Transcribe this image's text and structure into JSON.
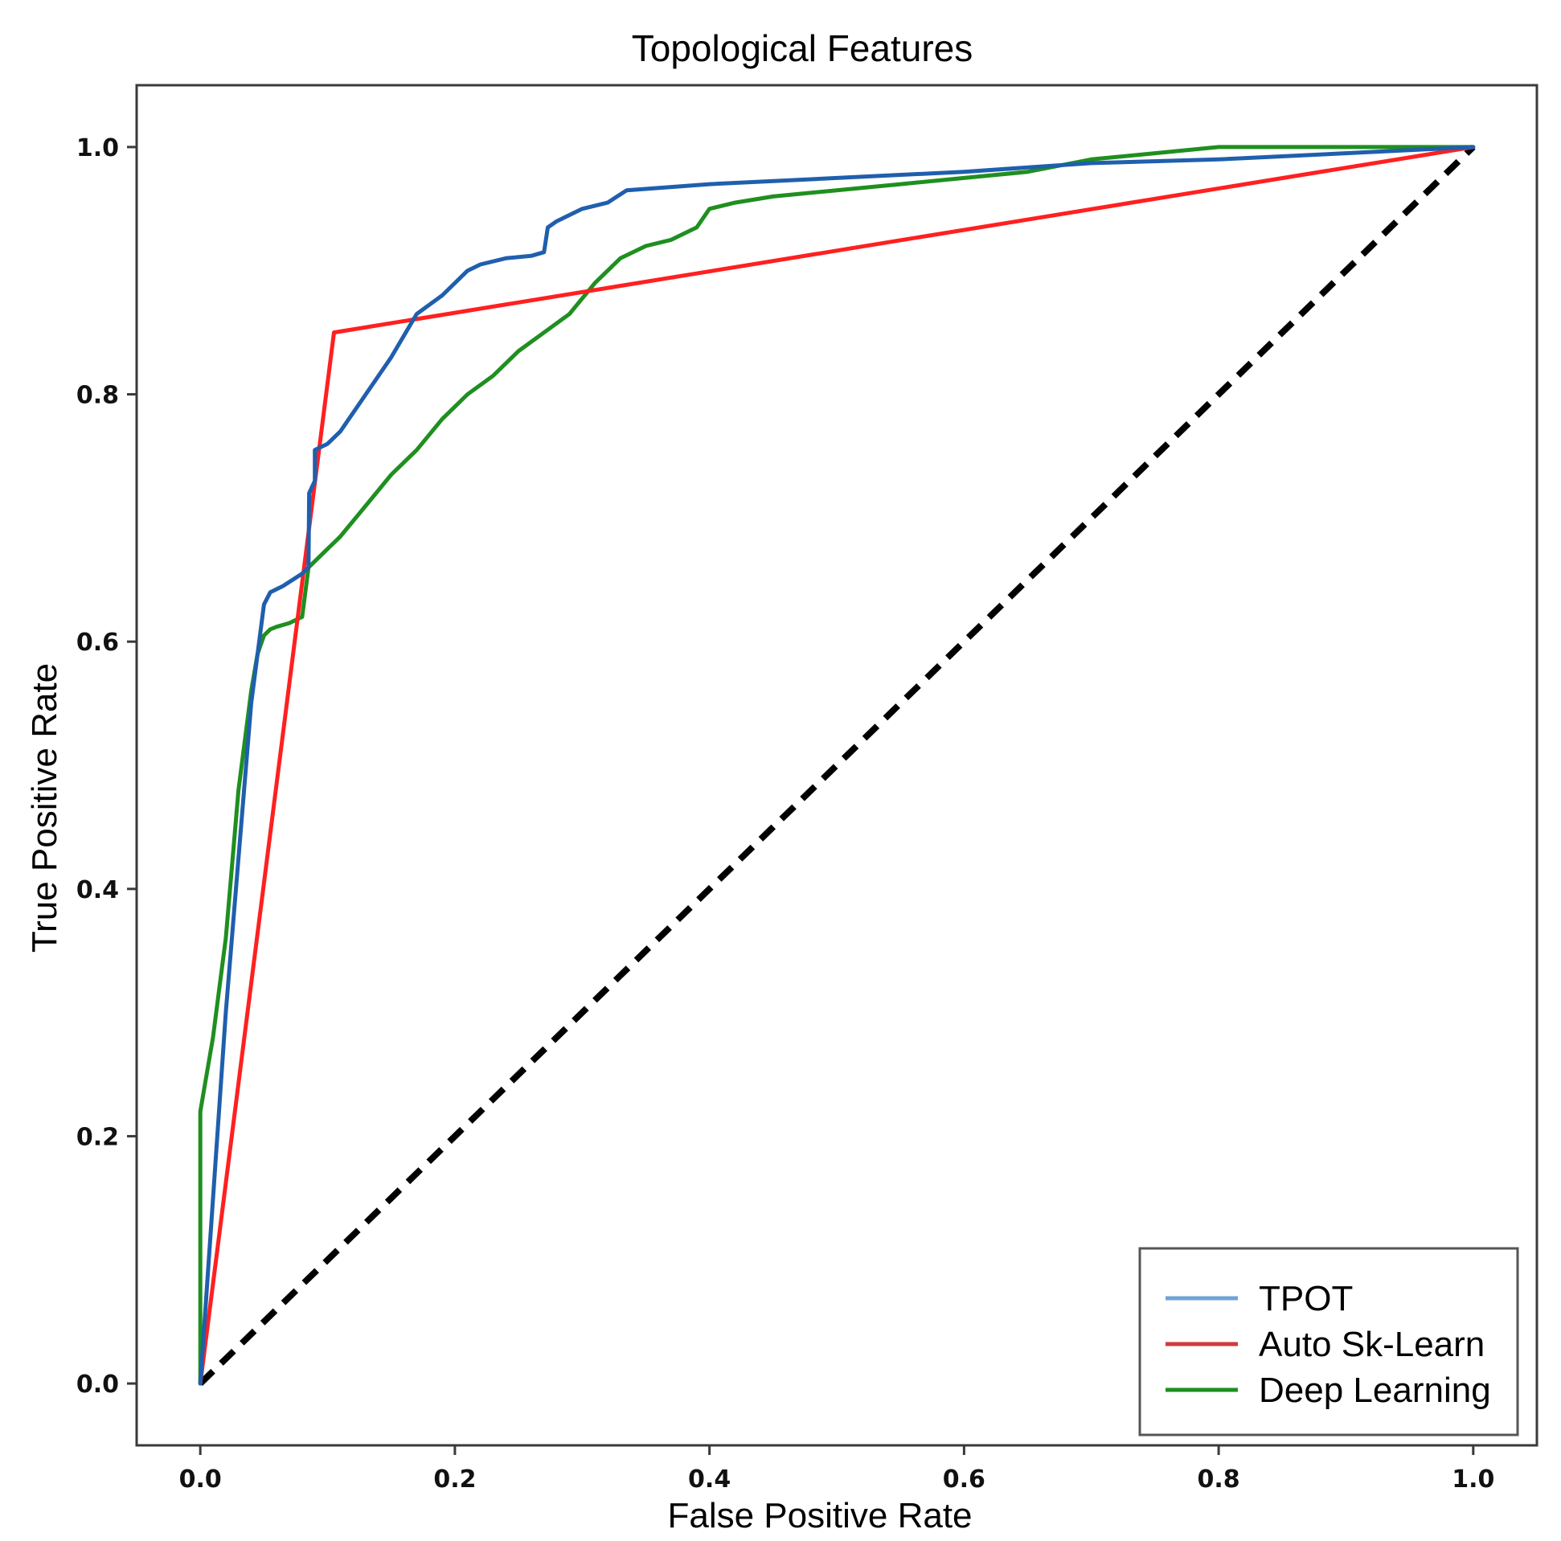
{
  "chart_data": {
    "type": "line",
    "title": "Topological Features",
    "xlabel": "False Positive Rate",
    "ylabel": "True Positive Rate",
    "xlim": [
      -0.05,
      1.05
    ],
    "ylim": [
      -0.05,
      1.05
    ],
    "xticks": [
      0.0,
      0.2,
      0.4,
      0.6,
      0.8,
      1.0
    ],
    "yticks": [
      0.0,
      0.2,
      0.4,
      0.6,
      0.8,
      1.0
    ],
    "xtick_labels": [
      "0.0",
      "0.2",
      "0.4",
      "0.6",
      "0.8",
      "1.0"
    ],
    "ytick_labels": [
      "0.0",
      "0.2",
      "0.4",
      "0.6",
      "0.8",
      "1.0"
    ],
    "grid": false,
    "legend_position": "bottom-right",
    "series": [
      {
        "name": "TPOT",
        "color": "#1f5fad",
        "legend_color": "#6ea3d8",
        "x": [
          0.0,
          0.02,
          0.04,
          0.05,
          0.055,
          0.065,
          0.08,
          0.085,
          0.0855,
          0.09,
          0.09,
          0.1,
          0.11,
          0.13,
          0.15,
          0.17,
          0.19,
          0.21,
          0.22,
          0.24,
          0.26,
          0.27,
          0.273,
          0.28,
          0.3,
          0.32,
          0.335,
          0.4,
          0.5,
          0.6,
          0.7,
          0.8,
          0.9,
          1.0
        ],
        "y": [
          0.0,
          0.3,
          0.55,
          0.63,
          0.64,
          0.645,
          0.655,
          0.66,
          0.72,
          0.73,
          0.755,
          0.76,
          0.77,
          0.8,
          0.83,
          0.865,
          0.88,
          0.9,
          0.905,
          0.91,
          0.912,
          0.915,
          0.935,
          0.94,
          0.95,
          0.955,
          0.965,
          0.97,
          0.975,
          0.98,
          0.987,
          0.99,
          0.995,
          1.0
        ]
      },
      {
        "name": "Auto Sk-Learn",
        "color": "#ff2020",
        "legend_color": "#d23a3a",
        "x": [
          0.0,
          0.105,
          1.0
        ],
        "y": [
          0.0,
          0.85,
          1.0
        ]
      },
      {
        "name": "Deep Learning",
        "color": "#1f8f1f",
        "legend_color": "#1f8f1f",
        "x": [
          0.0,
          0.0,
          0.005,
          0.01,
          0.015,
          0.02,
          0.025,
          0.03,
          0.035,
          0.04,
          0.045,
          0.05,
          0.055,
          0.06,
          0.07,
          0.08,
          0.085,
          0.09,
          0.1,
          0.11,
          0.13,
          0.15,
          0.17,
          0.19,
          0.21,
          0.23,
          0.25,
          0.27,
          0.29,
          0.31,
          0.33,
          0.35,
          0.37,
          0.39,
          0.4,
          0.42,
          0.45,
          0.5,
          0.55,
          0.6,
          0.65,
          0.7,
          0.75,
          0.8,
          0.9,
          1.0
        ],
        "y": [
          0.0,
          0.22,
          0.25,
          0.28,
          0.32,
          0.36,
          0.42,
          0.48,
          0.52,
          0.56,
          0.59,
          0.605,
          0.61,
          0.612,
          0.615,
          0.62,
          0.66,
          0.665,
          0.675,
          0.685,
          0.71,
          0.735,
          0.755,
          0.78,
          0.8,
          0.815,
          0.835,
          0.85,
          0.865,
          0.89,
          0.91,
          0.92,
          0.925,
          0.935,
          0.95,
          0.955,
          0.96,
          0.965,
          0.97,
          0.975,
          0.98,
          0.99,
          0.995,
          1.0,
          1.0,
          1.0
        ]
      },
      {
        "name": "chance",
        "color": "#000000",
        "dashed": true,
        "in_legend": false,
        "x": [
          0.0,
          1.0
        ],
        "y": [
          0.0,
          1.0
        ]
      }
    ]
  }
}
